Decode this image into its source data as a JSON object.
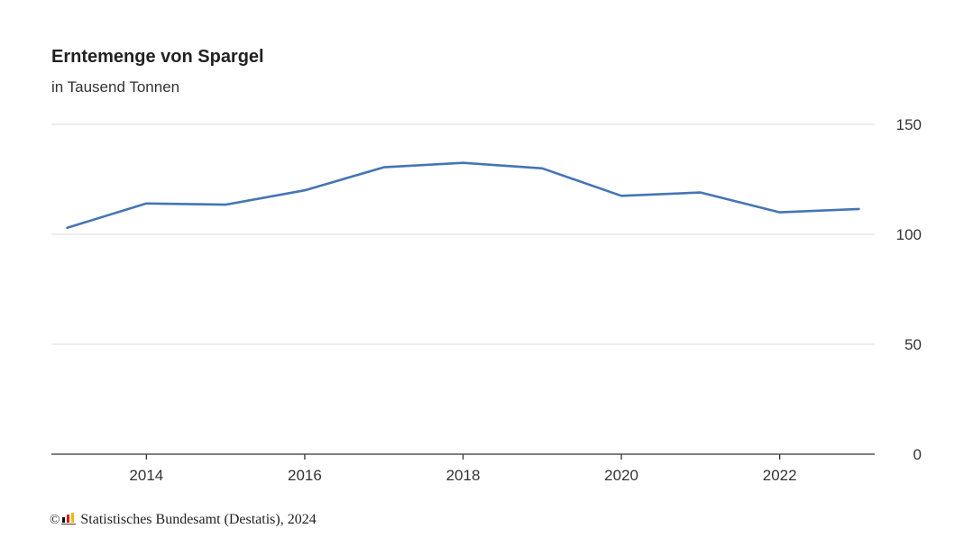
{
  "chart_data": {
    "type": "line",
    "title": "Erntemenge von Spargel",
    "subtitle": "in Tausend Tonnen",
    "x": [
      2013,
      2014,
      2015,
      2016,
      2017,
      2018,
      2019,
      2020,
      2021,
      2022,
      2023
    ],
    "series": [
      {
        "values": [
          103,
          114,
          113.5,
          120,
          130.5,
          132.5,
          130,
          117.5,
          119,
          110,
          111.5
        ]
      }
    ],
    "xticks": [
      "2014",
      "2016",
      "2018",
      "2020",
      "2022"
    ],
    "yticks": [
      "0",
      "50",
      "100",
      "150"
    ],
    "ylim": [
      0,
      150
    ],
    "xlim": [
      2012.8,
      2023.2
    ],
    "grid": "horizontal",
    "y_axis_side": "right",
    "legend": "none",
    "line_color": "#4575b4"
  },
  "source": {
    "copyright_symbol": "©",
    "text": "Statistisches Bundesamt (Destatis), 2024",
    "logo_icon": "destatis-logo-icon"
  }
}
